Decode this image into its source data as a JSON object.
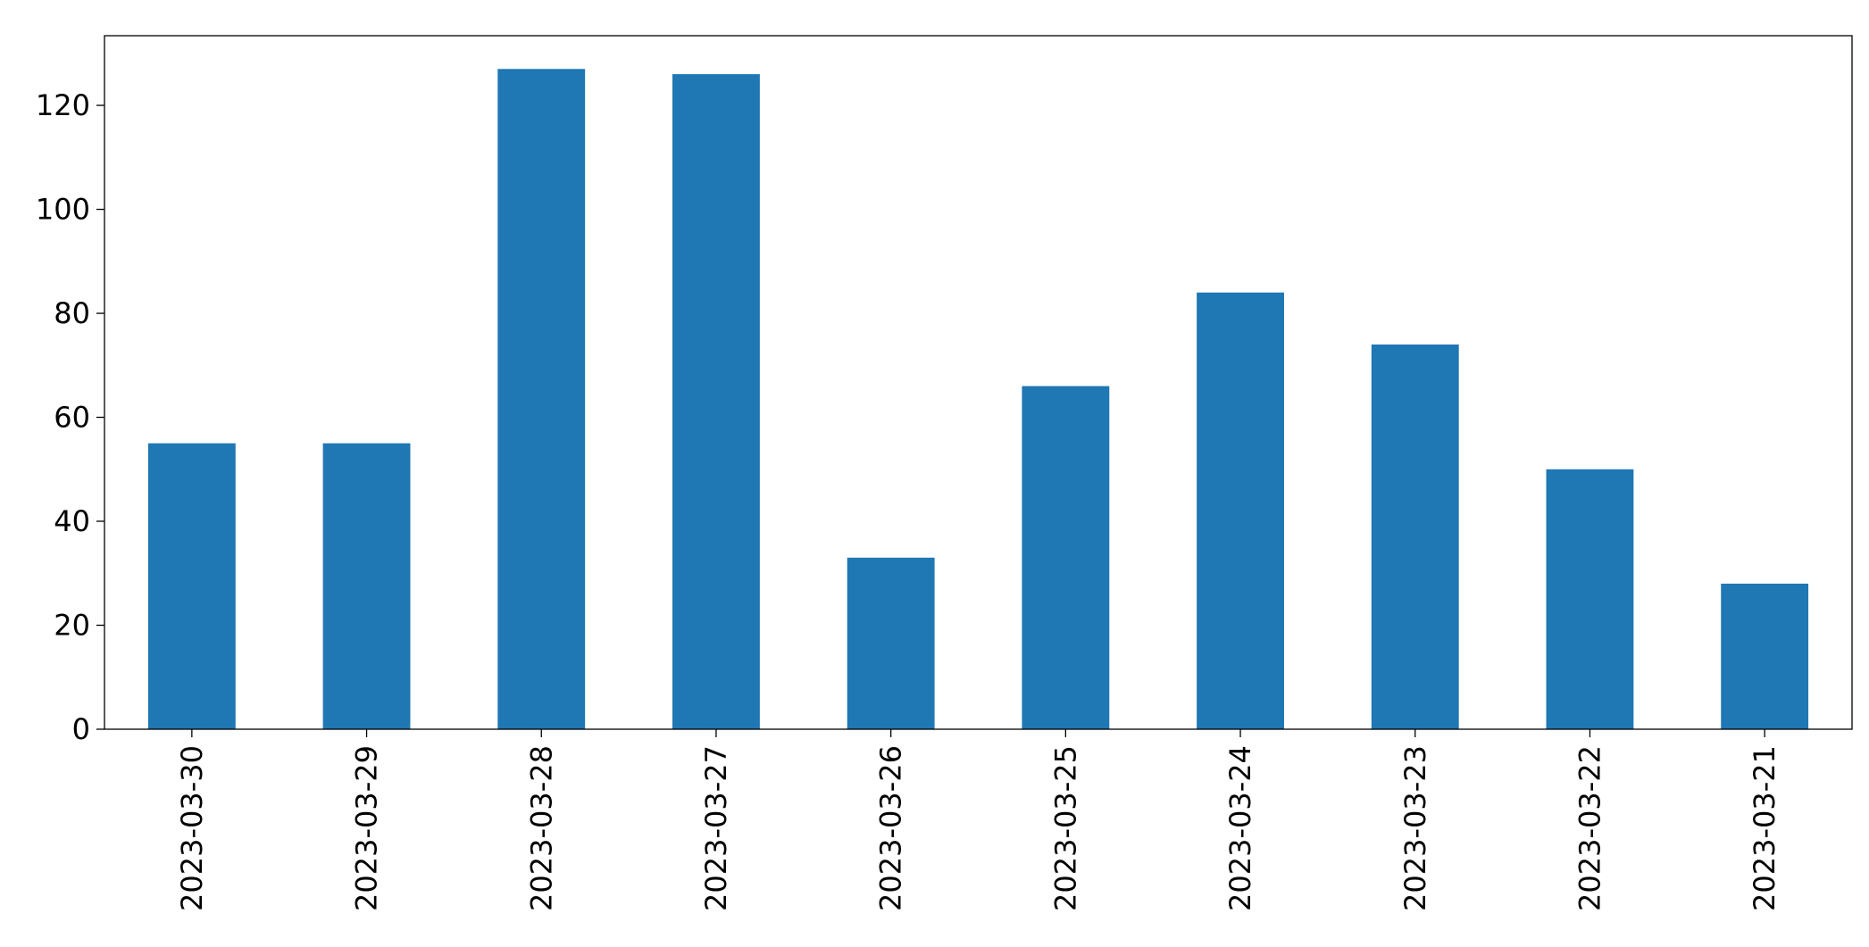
{
  "chart_data": {
    "type": "bar",
    "categories": [
      "2023-03-30",
      "2023-03-29",
      "2023-03-28",
      "2023-03-27",
      "2023-03-26",
      "2023-03-25",
      "2023-03-24",
      "2023-03-23",
      "2023-03-22",
      "2023-03-21"
    ],
    "values": [
      55,
      55,
      127,
      126,
      33,
      66,
      84,
      74,
      50,
      28
    ],
    "color": "#1f77b4",
    "ylim": [
      0,
      133.4
    ],
    "yticks": [
      0,
      20,
      40,
      60,
      80,
      100,
      120
    ],
    "grid": false
  }
}
